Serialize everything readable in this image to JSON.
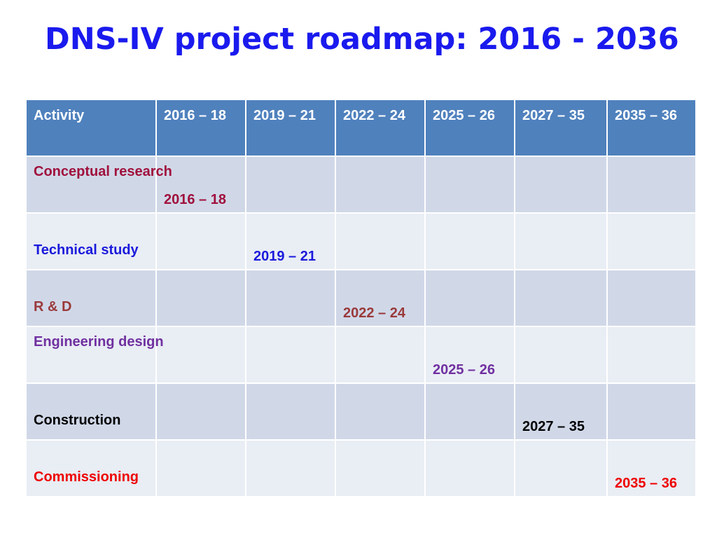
{
  "title": "DNS-IV project roadmap: 2016 - 2036",
  "table": {
    "headers": [
      "Activity",
      "2016 – 18",
      "2019 – 21",
      "2022 – 24",
      "2025 – 26",
      "2027 – 35",
      "2035 – 36"
    ],
    "rows": [
      {
        "activity": "Conceptual research",
        "period": "2016 – 18",
        "column": 1,
        "color": "#a0103c"
      },
      {
        "activity": "Technical study",
        "period": "2019 – 21",
        "column": 2,
        "color": "#1a1adc"
      },
      {
        "activity": "R & D",
        "period": "2022 – 24",
        "column": 3,
        "color": "#9a3a3a"
      },
      {
        "activity": "Engineering design",
        "period": "2025 – 26",
        "column": 4,
        "color": "#7030a0"
      },
      {
        "activity": "Construction",
        "period": "2027 – 35",
        "column": 5,
        "color": "#000000"
      },
      {
        "activity": "Commissioning",
        "period": "2035 – 36",
        "column": 6,
        "color": "#ee0000"
      }
    ]
  },
  "colors": {
    "title": "#1a1aee",
    "header_bg": "#4f81bd",
    "row_bg_odd": "#d0d8e8",
    "row_bg_even": "#e9edf4"
  }
}
